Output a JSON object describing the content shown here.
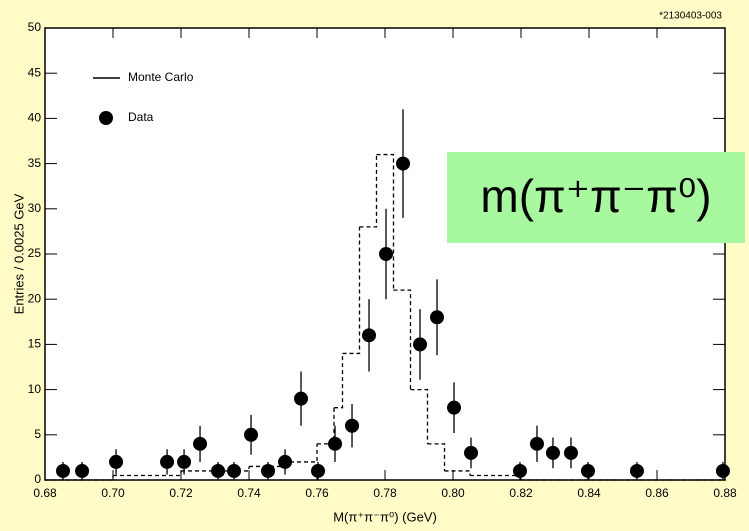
{
  "chart_data": {
    "type": "histogram",
    "corner_label": "*2130403-003",
    "xlabel": "M(π⁺π⁻π⁰) (GeV)",
    "ylabel": "Entries / 0.0025 GeV",
    "annotation": "m(π⁺π⁻π⁰)",
    "xlim": [
      0.68,
      0.88
    ],
    "xticks": [
      0.68,
      {
        "value": 0.7,
        "label": "0.70"
      },
      0.72,
      0.74,
      0.76,
      0.78,
      {
        "value": 0.8,
        "label": "0.80"
      },
      0.82,
      0.84,
      0.86,
      0.88
    ],
    "ylim": [
      0,
      50
    ],
    "yticks": [
      0,
      5,
      10,
      15,
      20,
      25,
      30,
      35,
      40,
      45,
      50
    ],
    "series": [
      {
        "name": "Monte Carlo",
        "type": "histogram",
        "color": "#000000",
        "dashed": true,
        "bins": [
          0.68,
          0.7,
          0.72,
          0.74,
          0.75,
          0.76,
          0.765,
          0.7675,
          0.7725,
          0.7775,
          0.7825,
          0.7875,
          0.7925,
          0.7975,
          0.805,
          0.82,
          0.88
        ],
        "values": [
          0,
          0.5,
          1,
          1.5,
          2,
          4,
          8,
          14,
          28,
          36,
          21,
          10,
          4,
          1,
          0.5,
          0
        ]
      },
      {
        "name": "Data",
        "type": "scatter",
        "color": "#000000",
        "x": [
          0.6853,
          0.6909,
          0.7009,
          0.7159,
          0.7209,
          0.7256,
          0.7309,
          0.7356,
          0.7406,
          0.7456,
          0.7506,
          0.7553,
          0.7603,
          0.7653,
          0.7703,
          0.7753,
          0.7803,
          0.7853,
          0.7903,
          0.7953,
          0.8003,
          0.8053,
          0.8197,
          0.8247,
          0.8294,
          0.8347,
          0.8397,
          0.8541,
          0.8794
        ],
        "values": [
          1,
          1,
          2,
          2,
          2,
          4,
          1,
          1,
          5,
          1,
          2,
          9,
          1,
          4,
          6,
          16,
          25,
          35,
          15,
          18,
          8,
          3,
          1,
          4,
          3,
          3,
          1,
          1,
          1
        ],
        "errors": [
          1,
          1,
          1.4,
          1.4,
          1.4,
          2,
          1,
          1,
          2.2,
          1,
          1.4,
          3,
          1,
          2,
          2.4,
          4,
          5,
          6,
          3.9,
          4.2,
          2.8,
          1.7,
          1,
          2,
          1.7,
          1.7,
          1,
          1,
          1
        ]
      }
    ]
  }
}
